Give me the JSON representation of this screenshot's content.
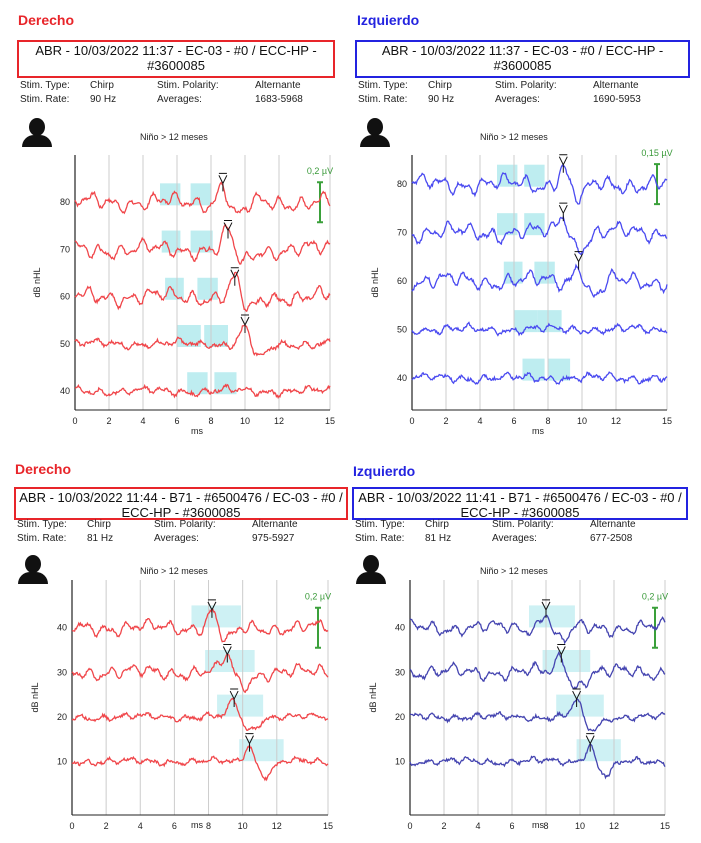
{
  "panels": [
    {
      "side": "Derecho",
      "side_color": "#e8252a",
      "header": "ABR - 10/03/2022 11:37 - EC-03 - #0 / ECC-HP - #3600085",
      "stim_type_label": "Stim. Type:",
      "stim_type": "Chirp",
      "stim_polarity_label": "Stim. Polarity:",
      "stim_polarity": "Alternante",
      "stim_rate_label": "Stim. Rate:",
      "stim_rate": "90 Hz",
      "averages_label": "Averages:",
      "averages": "1683-5968",
      "subtitle": "Niño > 12 meses"
    },
    {
      "side": "Izquierdo",
      "side_color": "#2323e0",
      "header": "ABR - 10/03/2022 11:37 - EC-03 - #0 / ECC-HP - #3600085",
      "stim_type_label": "Stim. Type:",
      "stim_type": "Chirp",
      "stim_polarity_label": "Stim. Polarity:",
      "stim_polarity": "Alternante",
      "stim_rate_label": "Stim. Rate:",
      "stim_rate": "90 Hz",
      "averages_label": "Averages:",
      "averages": "1690-5953",
      "subtitle": "Niño > 12 meses"
    },
    {
      "side": "Derecho",
      "side_color": "#e8252a",
      "header": "ABR - 10/03/2022 11:44 - B71 - #6500476 / EC-03 - #0 / ECC-HP - #3600085",
      "stim_type_label": "Stim. Type:",
      "stim_type": "Chirp",
      "stim_polarity_label": "Stim. Polarity:",
      "stim_polarity": "Alternante",
      "stim_rate_label": "Stim. Rate:",
      "stim_rate": "81 Hz",
      "averages_label": "Averages:",
      "averages": "975-5927",
      "subtitle": "Niño > 12 meses"
    },
    {
      "side": "Izquierdo",
      "side_color": "#2323e0",
      "header": "ABR - 10/03/2022 11:41 - B71 - #6500476 / EC-03 - #0 / ECC-HP - #3600085",
      "stim_type_label": "Stim. Type:",
      "stim_type": "Chirp",
      "stim_polarity_label": "Stim. Polarity:",
      "stim_polarity": "Alternante",
      "stim_rate_label": "Stim. Rate:",
      "stim_rate": "81 Hz",
      "averages_label": "Averages:",
      "averages": "677-2508",
      "subtitle": "Niño > 12 meses"
    }
  ],
  "chart_data": [
    {
      "type": "line",
      "xlabel": "ms",
      "ylabel": "dB nHL",
      "xlim": [
        0,
        15
      ],
      "ylim": [
        36,
        90
      ],
      "xticks": [
        0,
        2,
        4,
        6,
        8,
        10,
        12,
        15
      ],
      "yticks": [
        40,
        50,
        60,
        70,
        80
      ],
      "scale_label": "0,2 µV",
      "color": "#f0464a",
      "traces": [
        {
          "level": 80,
          "wave_v_ms": 8.7,
          "windows": [
            [
              5,
              6.2
            ],
            [
              6.8,
              8
            ]
          ]
        },
        {
          "level": 70,
          "wave_v_ms": 9.0,
          "windows": [
            [
              5.1,
              6.2
            ],
            [
              6.8,
              8.1
            ]
          ]
        },
        {
          "level": 60,
          "wave_v_ms": 9.4,
          "windows": [
            [
              5.3,
              6.4
            ],
            [
              7.2,
              8.4
            ]
          ]
        },
        {
          "level": 50,
          "wave_v_ms": 10.0,
          "windows": [
            [
              6,
              7.4
            ],
            [
              7.6,
              9
            ]
          ]
        },
        {
          "level": 40,
          "wave_v_ms": null,
          "windows": [
            [
              6.6,
              7.8
            ],
            [
              8.2,
              9.5
            ]
          ]
        }
      ]
    },
    {
      "type": "line",
      "xlabel": "ms",
      "ylabel": "dB nHL",
      "xlim": [
        0,
        15
      ],
      "ylim": [
        33.4,
        86
      ],
      "xticks": [
        0,
        2,
        4,
        6,
        8,
        10,
        12,
        15
      ],
      "yticks": [
        40,
        50,
        60,
        70,
        80
      ],
      "scale_label": "0,15 µV",
      "color": "#4a4af0",
      "traces": [
        {
          "level": 80,
          "wave_v_ms": 8.9,
          "windows": [
            [
              5,
              6.2
            ],
            [
              6.6,
              7.8
            ]
          ]
        },
        {
          "level": 70,
          "wave_v_ms": 8.9,
          "windows": [
            [
              5,
              6.2
            ],
            [
              6.6,
              7.8
            ]
          ]
        },
        {
          "level": 60,
          "wave_v_ms": 9.8,
          "windows": [
            [
              5.4,
              6.5
            ],
            [
              7.2,
              8.4
            ]
          ]
        },
        {
          "level": 50,
          "wave_v_ms": null,
          "windows": [
            [
              6,
              7.4
            ],
            [
              7.4,
              8.8
            ]
          ]
        },
        {
          "level": 40,
          "wave_v_ms": null,
          "windows": [
            [
              6.5,
              7.8
            ],
            [
              8,
              9.3
            ]
          ]
        }
      ]
    },
    {
      "type": "line",
      "xlabel": "ms",
      "ylabel": "dB nHL",
      "xlim": [
        0,
        15
      ],
      "ylim": [
        -2,
        50.7
      ],
      "xticks": [
        0,
        2,
        4,
        6,
        8,
        10,
        12,
        15
      ],
      "yticks": [
        10,
        20,
        30,
        40
      ],
      "scale_label": "0,2 µV",
      "color": "#f0464a",
      "traces": [
        {
          "level": 40,
          "wave_v_ms": 8.2,
          "windows": [
            [
              7,
              9.9
            ]
          ]
        },
        {
          "level": 30,
          "wave_v_ms": 9.1,
          "windows": [
            [
              7.8,
              10.7
            ]
          ]
        },
        {
          "level": 20,
          "wave_v_ms": 9.5,
          "windows": [
            [
              8.5,
              11.2
            ]
          ]
        },
        {
          "level": 10,
          "wave_v_ms": 10.4,
          "windows": [
            [
              9.8,
              12.4
            ]
          ]
        }
      ]
    },
    {
      "type": "line",
      "xlabel": "ms",
      "ylabel": "dB nHL",
      "xlim": [
        0,
        15
      ],
      "ylim": [
        -2,
        50.7
      ],
      "xticks": [
        0,
        2,
        4,
        6,
        8,
        10,
        12,
        15
      ],
      "yticks": [
        10,
        20,
        30,
        40
      ],
      "scale_label": "0,2 µV",
      "color": "#4444b0",
      "traces": [
        {
          "level": 40,
          "wave_v_ms": 8.0,
          "windows": [
            [
              7,
              9.7
            ]
          ]
        },
        {
          "level": 30,
          "wave_v_ms": 8.9,
          "windows": [
            [
              7.8,
              10.6
            ]
          ]
        },
        {
          "level": 20,
          "wave_v_ms": 9.8,
          "windows": [
            [
              8.6,
              11.4
            ]
          ]
        },
        {
          "level": 10,
          "wave_v_ms": 10.6,
          "windows": [
            [
              9.8,
              12.4
            ]
          ]
        }
      ]
    }
  ]
}
